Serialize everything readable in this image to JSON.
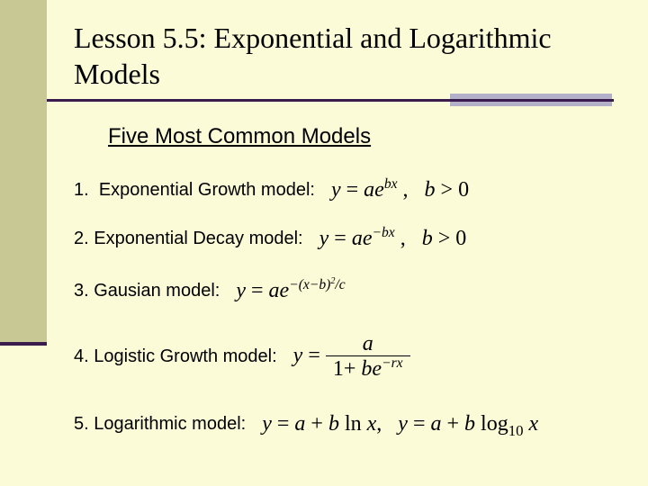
{
  "slide": {
    "background_color": "#fbfbd8",
    "stripe_color": "#c7c894",
    "rule_color": "#3a1b4d",
    "rule_accent_color": "#b5b0c9",
    "title": "Lesson 5.5:  Exponential and Logarithmic Models",
    "title_font": "Times New Roman",
    "title_fontsize": 32,
    "subtitle": "Five Most Common Models",
    "subtitle_fontsize": 24
  },
  "models": [
    {
      "n": "1.",
      "label": "Exponential Growth model:",
      "formula_plain": "y = a e^{bx},  b > 0"
    },
    {
      "n": "2.",
      "label": "Exponential Decay model:",
      "formula_plain": "y = a e^{-bx},  b > 0"
    },
    {
      "n": "3.",
      "label": "Gausian model:",
      "formula_plain": "y = a e^{-(x-b)^2 / c}"
    },
    {
      "n": "4.",
      "label": "Logistic Growth model:",
      "formula_numerator": "a",
      "formula_denominator_plain": "1 + b e^{-rx}"
    },
    {
      "n": "5.",
      "label": "Logarithmic model:",
      "formula_plain": "y = a + b ln x,   y = a + b log_{10} x"
    }
  ]
}
